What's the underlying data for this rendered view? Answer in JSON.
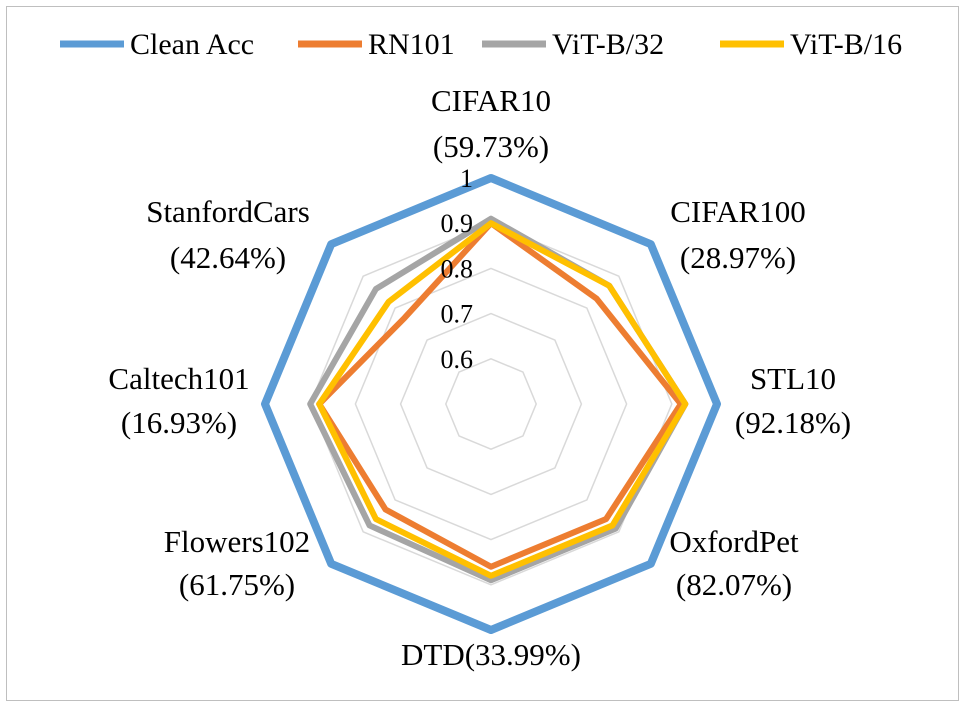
{
  "chart_data": {
    "type": "radar",
    "title": "",
    "categories": [
      {
        "name": "CIFAR10",
        "acc": "(59.73%)"
      },
      {
        "name": "CIFAR100",
        "acc": "(28.97%)"
      },
      {
        "name": "STL10",
        "acc": "(92.18%)"
      },
      {
        "name": "OxfordPet",
        "acc": "(82.07%)"
      },
      {
        "name": "DTD",
        "acc": "(33.99%)"
      },
      {
        "name": "Flowers102",
        "acc": "(61.75%)"
      },
      {
        "name": "Caltech101",
        "acc": "(16.93%)"
      },
      {
        "name": "StanfordCars",
        "acc": "(42.64%)"
      }
    ],
    "rlim": [
      0.5,
      1.0
    ],
    "ticks": [
      0.6,
      0.7,
      0.8,
      0.9,
      1
    ],
    "tick_labels": [
      "0.6",
      "0.7",
      "0.8",
      "0.9",
      "1"
    ],
    "series": [
      {
        "name": "Clean Acc",
        "color": "#5b9bd5",
        "values": [
          1,
          1,
          1,
          1,
          1,
          1,
          1,
          1
        ]
      },
      {
        "name": "RN101",
        "color": "#ed7d31",
        "values": [
          0.9,
          0.83,
          0.92,
          0.86,
          0.86,
          0.83,
          0.88,
          0.77
        ]
      },
      {
        "name": "ViT-B/32",
        "color": "#a5a5a5",
        "values": [
          0.91,
          0.87,
          0.93,
          0.89,
          0.89,
          0.88,
          0.9,
          0.86
        ]
      },
      {
        "name": "ViT-B/16",
        "color": "#ffc000",
        "values": [
          0.9,
          0.87,
          0.93,
          0.88,
          0.88,
          0.86,
          0.88,
          0.82
        ]
      }
    ]
  }
}
